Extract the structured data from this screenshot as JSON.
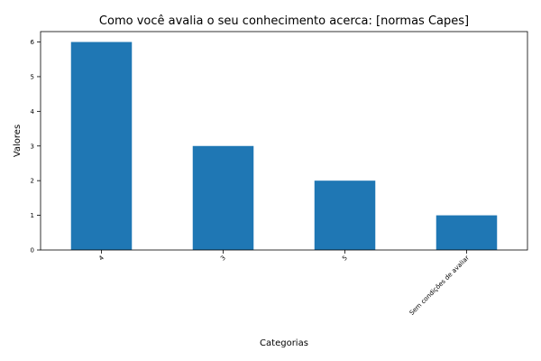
{
  "chart_data": {
    "type": "bar",
    "title": "Como você avalia o seu conhecimento acerca: [normas Capes]",
    "xlabel": "Categorias",
    "ylabel": "Valores",
    "categories": [
      "4",
      "3",
      "5",
      "Sem condições de avaliar"
    ],
    "values": [
      6,
      3,
      2,
      1
    ],
    "ylim": [
      0,
      6.3
    ],
    "yticks": [
      0,
      1,
      2,
      3,
      4,
      5,
      6
    ],
    "bar_color": "#1f77b4",
    "grid": false,
    "legend": "none"
  }
}
